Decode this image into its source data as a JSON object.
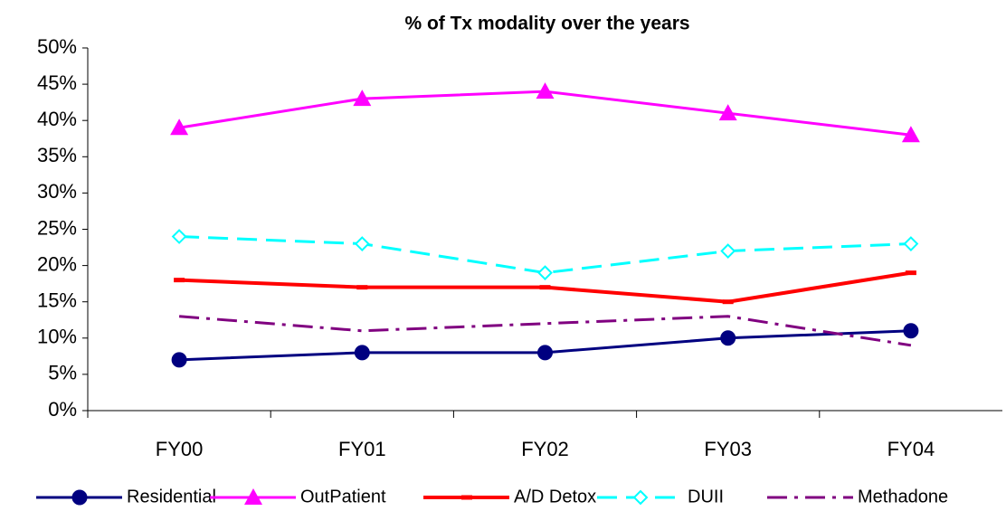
{
  "chart_data": {
    "type": "line",
    "title": "% of Tx modality over the years",
    "categories": [
      "FY00",
      "FY01",
      "FY02",
      "FY03",
      "FY04"
    ],
    "series": [
      {
        "name": "Residential",
        "color": "#000080",
        "marker": "circle",
        "dash": "solid",
        "values": [
          7,
          8,
          8,
          10,
          11
        ]
      },
      {
        "name": "OutPatient",
        "color": "#ff00ff",
        "marker": "triangle",
        "dash": "solid",
        "values": [
          39,
          43,
          44,
          41,
          38
        ]
      },
      {
        "name": "A/D Detox",
        "color": "#ff0000",
        "marker": "dash",
        "dash": "solid",
        "values": [
          18,
          17,
          17,
          15,
          19
        ]
      },
      {
        "name": "DUII",
        "color": "#00ffff",
        "marker": "diamond",
        "dash": "dashed",
        "values": [
          24,
          23,
          19,
          22,
          23
        ]
      },
      {
        "name": "Methadone",
        "color": "#800080",
        "marker": "none",
        "dash": "dashdot",
        "values": [
          13,
          11,
          12,
          13,
          9
        ]
      }
    ],
    "ylim": [
      0,
      50
    ],
    "yticks": [
      {
        "value": 0,
        "label": "0%"
      },
      {
        "value": 5,
        "label": "5%"
      },
      {
        "value": 10,
        "label": "10%"
      },
      {
        "value": 15,
        "label": "15%"
      },
      {
        "value": 20,
        "label": "20%"
      },
      {
        "value": 25,
        "label": "25%"
      },
      {
        "value": 30,
        "label": "30%"
      },
      {
        "value": 35,
        "label": "35%"
      },
      {
        "value": 40,
        "label": "40%"
      },
      {
        "value": 45,
        "label": "45%"
      },
      {
        "value": 50,
        "label": "50%"
      }
    ],
    "grid": false,
    "legend": "bottom"
  }
}
